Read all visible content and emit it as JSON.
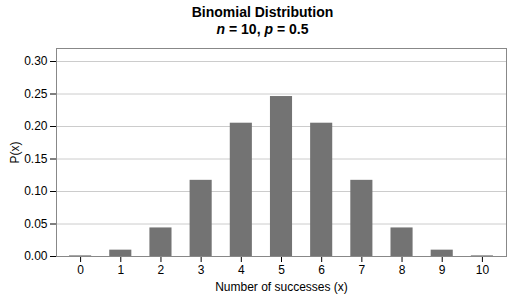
{
  "chart_data": {
    "type": "bar",
    "title": "Binomial Distribution",
    "subtitle": "n = 10, p = 0.5",
    "x": [
      0,
      1,
      2,
      3,
      4,
      5,
      6,
      7,
      8,
      9,
      10
    ],
    "values": [
      0.000977,
      0.009766,
      0.043945,
      0.117188,
      0.205078,
      0.246094,
      0.205078,
      0.117188,
      0.043945,
      0.009766,
      0.000977
    ],
    "color": "#737373",
    "xlabel": "Number of successes (x)",
    "ylabel": "P(x)",
    "xlim": [
      -0.6,
      10.6
    ],
    "xticks": [
      0,
      1,
      2,
      3,
      4,
      5,
      6,
      7,
      8,
      9,
      10
    ],
    "ylim": [
      0,
      0.32
    ],
    "yticks": [
      {
        "value": 0.0,
        "label": "0.00"
      },
      0.05,
      {
        "value": 0.1,
        "label": "0.10"
      },
      0.15,
      {
        "value": 0.2,
        "label": "0.20"
      },
      0.25,
      {
        "value": 0.3,
        "label": "0.30"
      }
    ],
    "grid": true
  }
}
